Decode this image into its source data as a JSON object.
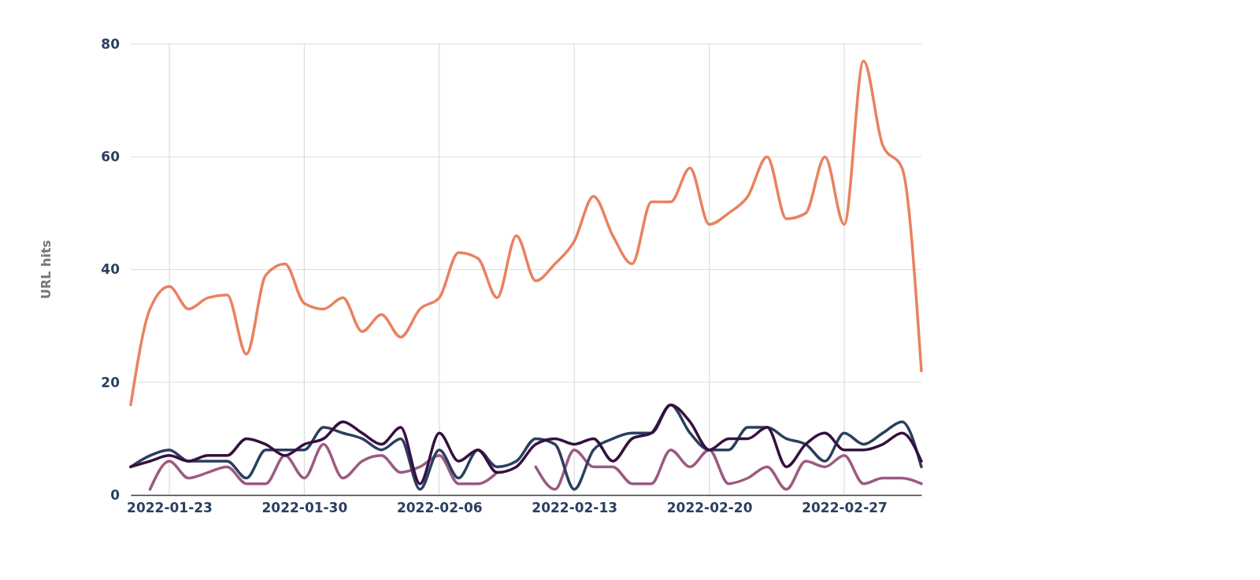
{
  "chart_data": {
    "type": "line",
    "ylabel": "URL hits",
    "x": [
      "2022-01-21",
      "2022-01-22",
      "2022-01-23",
      "2022-01-24",
      "2022-01-25",
      "2022-01-26",
      "2022-01-27",
      "2022-01-28",
      "2022-01-29",
      "2022-01-30",
      "2022-01-31",
      "2022-02-01",
      "2022-02-02",
      "2022-02-03",
      "2022-02-04",
      "2022-02-05",
      "2022-02-06",
      "2022-02-07",
      "2022-02-08",
      "2022-02-09",
      "2022-02-10",
      "2022-02-11",
      "2022-02-12",
      "2022-02-13",
      "2022-02-14",
      "2022-02-15",
      "2022-02-16",
      "2022-02-17",
      "2022-02-18",
      "2022-02-19",
      "2022-02-20",
      "2022-02-21",
      "2022-02-22",
      "2022-02-23",
      "2022-02-24",
      "2022-02-25",
      "2022-02-26",
      "2022-02-27",
      "2022-02-28",
      "2022-03-01",
      "2022-03-02",
      "2022-03-03"
    ],
    "series": [
      {
        "color": "#e8825f",
        "values": [
          16,
          33,
          37,
          33,
          35,
          35.5,
          25,
          39,
          41,
          34,
          33,
          35,
          29,
          32,
          28,
          33,
          35,
          43,
          42,
          35,
          46,
          38,
          41,
          45,
          53,
          46,
          41,
          52,
          52,
          58,
          48,
          50,
          53,
          60,
          49,
          50,
          60,
          48,
          77,
          62,
          58,
          22
        ]
      },
      {
        "color": "#9c5a82",
        "values": [
          null,
          1,
          6,
          3,
          4,
          5,
          2,
          2,
          7,
          3,
          9,
          3,
          6,
          7,
          4,
          5,
          7,
          2,
          2,
          4,
          null,
          5,
          1,
          8,
          5,
          5,
          2,
          2,
          8,
          5,
          8,
          2,
          3,
          5,
          1,
          6,
          5,
          7,
          2,
          3,
          3,
          2
        ]
      },
      {
        "color": "#2a3f5f",
        "values": [
          5,
          7,
          8,
          6,
          6,
          6,
          3,
          8,
          8,
          8,
          12,
          11,
          10,
          8,
          10,
          1,
          8,
          3,
          8,
          5,
          6,
          10,
          9,
          1,
          8,
          10,
          11,
          11,
          16,
          11,
          8,
          8,
          12,
          12,
          10,
          9,
          6,
          11,
          9,
          11,
          13,
          5
        ]
      },
      {
        "color": "#36103f",
        "values": [
          5,
          6,
          7,
          6,
          7,
          7,
          10,
          9,
          7,
          9,
          10,
          13,
          11,
          9,
          12,
          2,
          11,
          6,
          8,
          4,
          5,
          9,
          10,
          9,
          10,
          6,
          10,
          11,
          16,
          13,
          8,
          10,
          10,
          12,
          5,
          9,
          11,
          8,
          8,
          9,
          11,
          6
        ]
      }
    ],
    "xlim": [
      "2022-01-21",
      "2022-03-03"
    ],
    "xticks": [
      "2022-01-23",
      "2022-01-30",
      "2022-02-06",
      "2022-02-13",
      "2022-02-20",
      "2022-02-27"
    ],
    "ylim": [
      0,
      80
    ],
    "yticks": [
      0,
      20,
      40,
      60,
      80
    ],
    "grid": true,
    "line_style": "solid",
    "marker": "none"
  }
}
